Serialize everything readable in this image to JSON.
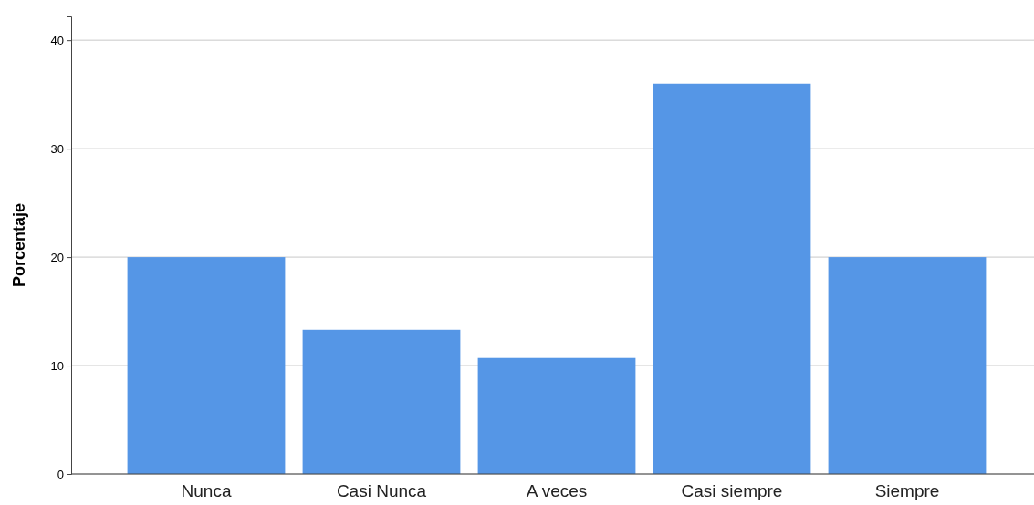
{
  "chart_data": {
    "type": "bar",
    "ylabel": "Porcentaje",
    "categories": [
      "Nunca",
      "Casi Nunca",
      "A veces",
      "Casi siempre",
      "Siempre"
    ],
    "values": [
      20,
      13.3,
      10.7,
      36,
      20
    ],
    "color": "#5596e6",
    "ylim": [
      0,
      42.2
    ],
    "yticks": [
      0,
      10,
      20,
      30,
      40
    ],
    "grid": "y"
  }
}
